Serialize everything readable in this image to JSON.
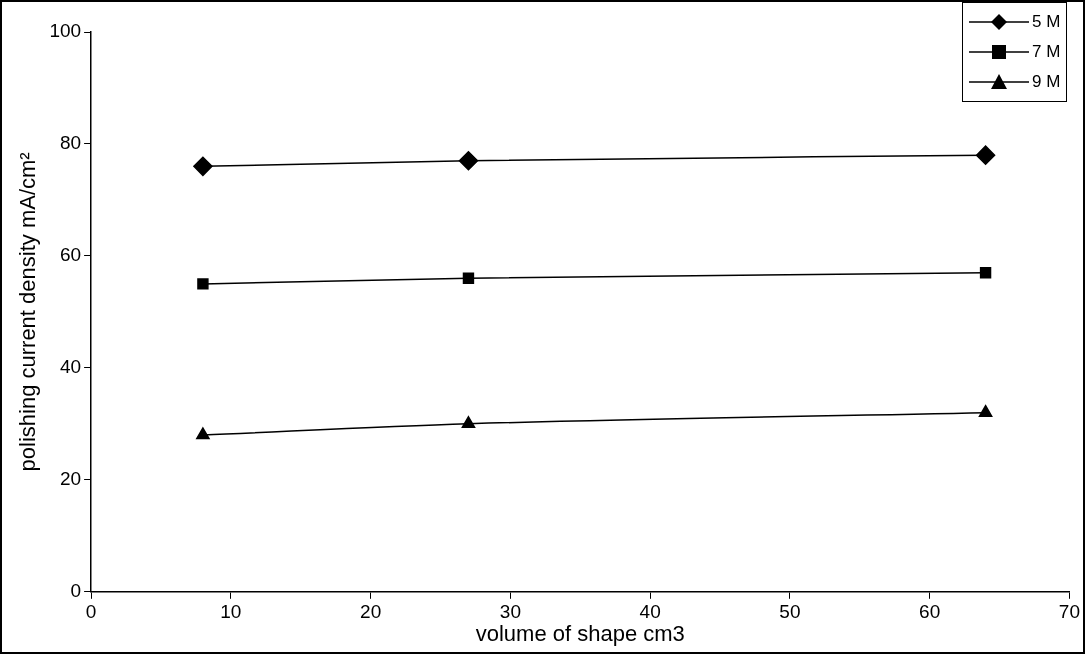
{
  "chart_data": {
    "type": "line",
    "xlabel": "volume of shape cm3",
    "ylabel": "polishing current density mA/cm²",
    "xlim": [
      0,
      70
    ],
    "xticks": [
      0,
      10,
      20,
      30,
      40,
      50,
      60,
      70
    ],
    "ylim": [
      0,
      100
    ],
    "yticks": [
      0,
      20,
      40,
      60,
      80,
      100
    ],
    "grid": false,
    "legend": "top right",
    "line_style": "solid",
    "x": [
      8,
      27,
      64
    ],
    "series": [
      {
        "name": "5 M",
        "color": "#000000",
        "marker": "diamond",
        "values": [
          76,
          77,
          78
        ]
      },
      {
        "name": "7 M",
        "color": "#000000",
        "marker": "square",
        "values": [
          55,
          56,
          57
        ]
      },
      {
        "name": "9 M",
        "color": "#000000",
        "marker": "triangle",
        "values": [
          28,
          30,
          32
        ]
      }
    ]
  }
}
